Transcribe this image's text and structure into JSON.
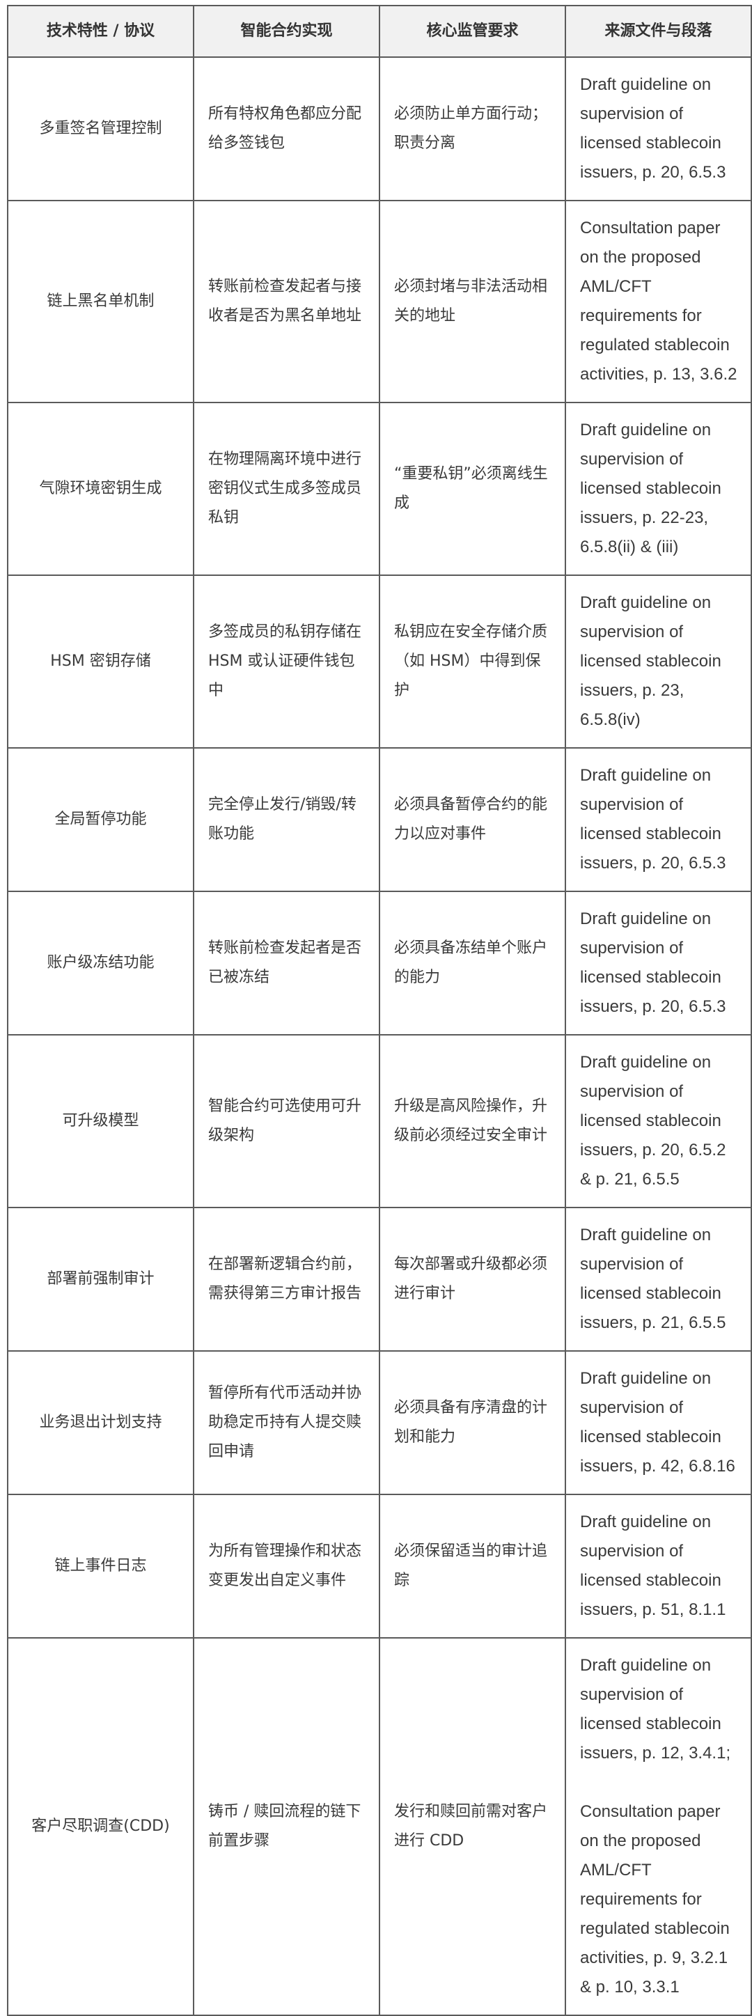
{
  "table": {
    "headers": [
      "技术特性 / 协议",
      "智能合约实现",
      "核心监管要求",
      "来源文件与段落"
    ],
    "rows": [
      {
        "feature": "多重签名管理控制",
        "implementation": "所有特权角色都应分配给多签钱包",
        "requirement": "必须防止单方面行动；职责分离",
        "source": "Draft guideline on supervision of licensed stablecoin issuers, p. 20, 6.5.3"
      },
      {
        "feature": "链上黑名单机制",
        "implementation": "转账前检查发起者与接收者是否为黑名单地址",
        "requirement": "必须封堵与非法活动相关的地址",
        "source": "Consultation paper on the proposed AML/CFT requirements for regulated stablecoin activities, p. 13, 3.6.2"
      },
      {
        "feature": "气隙环境密钥生成",
        "implementation": "在物理隔离环境中进行密钥仪式生成多签成员私钥",
        "requirement": "“重要私钥”必须离线生成",
        "source": "Draft guideline on supervision of licensed stablecoin issuers, p. 22-23, 6.5.8(ii) & (iii)"
      },
      {
        "feature": "HSM 密钥存储",
        "implementation": "多签成员的私钥存储在 HSM 或认证硬件钱包中",
        "requirement": "私钥应在安全存储介质（如 HSM）中得到保护",
        "source": "Draft guideline on supervision of licensed stablecoin issuers, p. 23, 6.5.8(iv)"
      },
      {
        "feature": "全局暂停功能",
        "implementation": "完全停止发行/销毁/转账功能",
        "requirement": "必须具备暂停合约的能力以应对事件",
        "source": "Draft guideline on supervision of licensed stablecoin issuers, p. 20, 6.5.3"
      },
      {
        "feature": "账户级冻结功能",
        "implementation": "转账前检查发起者是否已被冻结",
        "requirement": "必须具备冻结单个账户的能力",
        "source": "Draft guideline on supervision of licensed stablecoin issuers, p. 20, 6.5.3"
      },
      {
        "feature": "可升级模型",
        "implementation": "智能合约可选使用可升级架构",
        "requirement": "升级是高风险操作，升级前必须经过安全审计",
        "source": "Draft guideline on supervision of licensed stablecoin issuers, p. 20, 6.5.2 & p. 21, 6.5.5"
      },
      {
        "feature": "部署前强制审计",
        "implementation": "在部署新逻辑合约前，需获得第三方审计报告",
        "requirement": "每次部署或升级都必须进行审计",
        "source": "Draft guideline on supervision of licensed stablecoin issuers, p. 21, 6.5.5"
      },
      {
        "feature": "业务退出计划支持",
        "implementation": "暂停所有代币活动并协助稳定币持有人提交赎回申请",
        "requirement": "必须具备有序清盘的计划和能力",
        "source": "Draft guideline on supervision of licensed stablecoin issuers, p. 42, 6.8.16"
      },
      {
        "feature": "链上事件日志",
        "implementation": "为所有管理操作和状态变更发出自定义事件",
        "requirement": "必须保留适当的审计追踪",
        "source": "Draft guideline on supervision of licensed stablecoin issuers, p. 51, 8.1.1"
      },
      {
        "feature": "客户尽职调查(CDD)",
        "implementation": "铸币 / 赎回流程的链下前置步骤",
        "requirement": "发行和赎回前需对客户进行 CDD",
        "source": "Draft guideline on supervision of licensed stablecoin issuers, p. 12, 3.4.1;",
        "source_2": "Consultation paper on the proposed AML/CFT requirements for regulated stablecoin activities, p. 9, 3.2.1 & p. 10, 3.3.1"
      }
    ]
  }
}
